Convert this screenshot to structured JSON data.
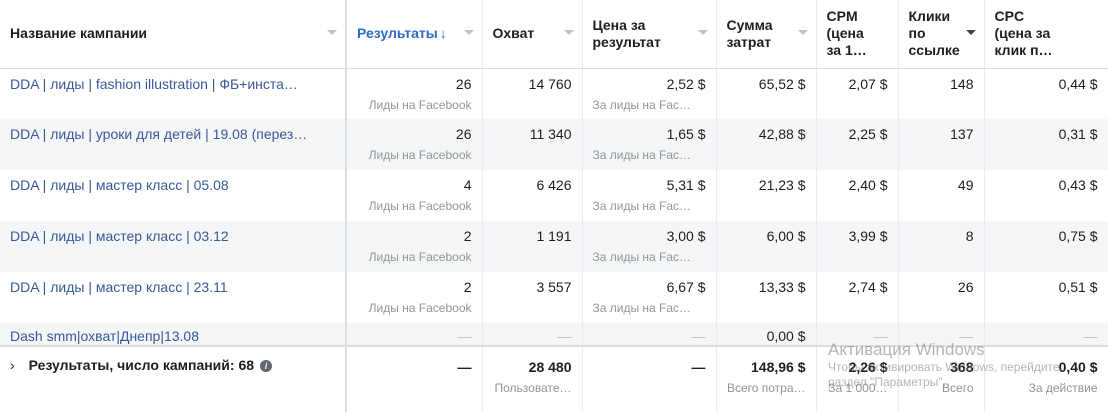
{
  "headers": [
    {
      "l1": "Название кампании",
      "l2": "",
      "l3": ""
    },
    {
      "l1": "Результаты",
      "l2": "",
      "l3": "",
      "arrow": "↓"
    },
    {
      "l1": "Охват",
      "l2": "",
      "l3": ""
    },
    {
      "l1": "Цена за",
      "l2": "результат",
      "l3": ""
    },
    {
      "l1": "Сумма",
      "l2": "затрат",
      "l3": ""
    },
    {
      "l1": "CPM",
      "l2": "(цена",
      "l3": "за 1…"
    },
    {
      "l1": "Клики",
      "l2": "по",
      "l3": "ссылке"
    },
    {
      "l1": "CPC",
      "l2": "(цена за",
      "l3": "клик п…"
    }
  ],
  "rows": [
    {
      "name": "DDA | лиды | fashion illustration | ФБ+инста…",
      "results": "26",
      "results_sub": "Лиды на Facebook",
      "reach": "14 760",
      "cpr": "2,52 $",
      "cpr_sub": "За лиды на Fac…",
      "spend": "65,52 $",
      "cpm": "2,07 $",
      "clicks": "148",
      "cpc": "0,44 $"
    },
    {
      "name": "DDA | лиды | уроки для детей | 19.08 (перез…",
      "results": "26",
      "results_sub": "Лиды на Facebook",
      "reach": "11 340",
      "cpr": "1,65 $",
      "cpr_sub": "За лиды на Fac…",
      "spend": "42,88 $",
      "cpm": "2,25 $",
      "clicks": "137",
      "cpc": "0,31 $"
    },
    {
      "name": "DDA | лиды | мастер класс | 05.08",
      "results": "4",
      "results_sub": "Лиды на Facebook",
      "reach": "6 426",
      "cpr": "5,31 $",
      "cpr_sub": "За лиды на Fac…",
      "spend": "21,23 $",
      "cpm": "2,40 $",
      "clicks": "49",
      "cpc": "0,43 $"
    },
    {
      "name": "DDA | лиды | мастер класс | 03.12",
      "results": "2",
      "results_sub": "Лиды на Facebook",
      "reach": "1 191",
      "cpr": "3,00 $",
      "cpr_sub": "За лиды на Fac…",
      "spend": "6,00 $",
      "cpm": "3,99 $",
      "clicks": "8",
      "cpc": "0,75 $"
    },
    {
      "name": "DDA | лиды | мастер класс | 23.11",
      "results": "2",
      "results_sub": "Лиды на Facebook",
      "reach": "3 557",
      "cpr": "6,67 $",
      "cpr_sub": "За лиды на Fac…",
      "spend": "13,33 $",
      "cpm": "2,74 $",
      "clicks": "26",
      "cpc": "0,51 $"
    }
  ],
  "partial_row": {
    "name": "Dash smm|охват|Днепр|13.08",
    "dash": "—",
    "spend": "0,00 $"
  },
  "footer": {
    "label": "Результаты, число кампаний: 68",
    "expand": "›",
    "info": "i",
    "results": "—",
    "reach": "28 480",
    "reach_sub": "Пользовате…",
    "cpr": "—",
    "spend": "148,96 $",
    "spend_sub": "Всего потра…",
    "cpm": "2,26 $",
    "cpm_sub": "За 1 000…",
    "clicks": "368",
    "clicks_sub": "Всего",
    "cpc": "0,40 $",
    "cpc_sub": "За действие"
  },
  "watermark": {
    "title": "Активация Windows",
    "line1": "Чтобы активировать Windows, перейдите",
    "line2": "раздел \"Параметры\"."
  }
}
